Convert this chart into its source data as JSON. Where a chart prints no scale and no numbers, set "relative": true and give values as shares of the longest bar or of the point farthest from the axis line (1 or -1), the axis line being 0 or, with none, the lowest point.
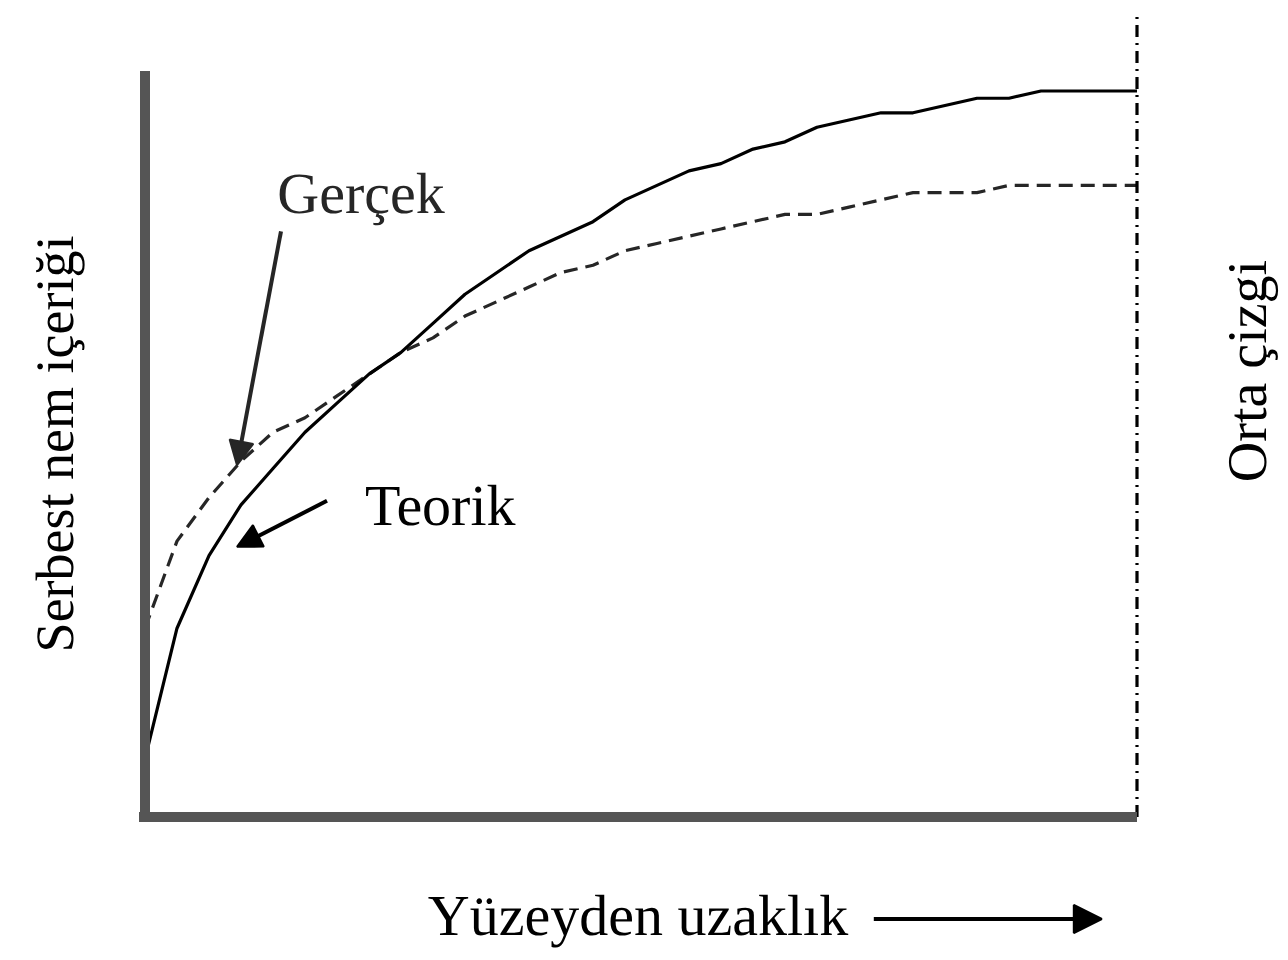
{
  "chart_data": {
    "type": "line",
    "relative": true,
    "xlabel": "Yüzeyden uzaklık",
    "ylabel": "Serbest nem içeriği",
    "categories": [
      null,
      null,
      null,
      null,
      null,
      null,
      null,
      null,
      null,
      null,
      null,
      null,
      null,
      null,
      null,
      null,
      null,
      null,
      null,
      null,
      null,
      null,
      null,
      null,
      null,
      null,
      null,
      null,
      null,
      null,
      null,
      null
    ],
    "series": [
      {
        "name": "Gerçek",
        "color": "#262626",
        "line_style": "dashed",
        "values": [
          0.26,
          0.38,
          0.44,
          0.49,
          0.53,
          0.55,
          0.58,
          0.61,
          0.64,
          0.66,
          0.69,
          0.71,
          0.73,
          0.75,
          0.76,
          0.78,
          0.79,
          0.8,
          0.81,
          0.82,
          0.83,
          0.83,
          0.84,
          0.85,
          0.86,
          0.86,
          0.86,
          0.87,
          0.87,
          0.87,
          0.87,
          0.87
        ]
      },
      {
        "name": "Teorik",
        "color": "#000000",
        "line_style": "solid",
        "values": [
          0.08,
          0.26,
          0.36,
          0.43,
          0.48,
          0.53,
          0.57,
          0.61,
          0.64,
          0.68,
          0.72,
          0.75,
          0.78,
          0.8,
          0.82,
          0.85,
          0.87,
          0.89,
          0.9,
          0.92,
          0.93,
          0.95,
          0.96,
          0.97,
          0.97,
          0.98,
          0.99,
          0.99,
          1.0,
          1.0,
          1.0,
          1.0
        ]
      }
    ],
    "ref_lines": [
      {
        "axis": "x",
        "label": "Orta çizgi",
        "line_style": "dashdot",
        "color": "#000000"
      }
    ]
  }
}
